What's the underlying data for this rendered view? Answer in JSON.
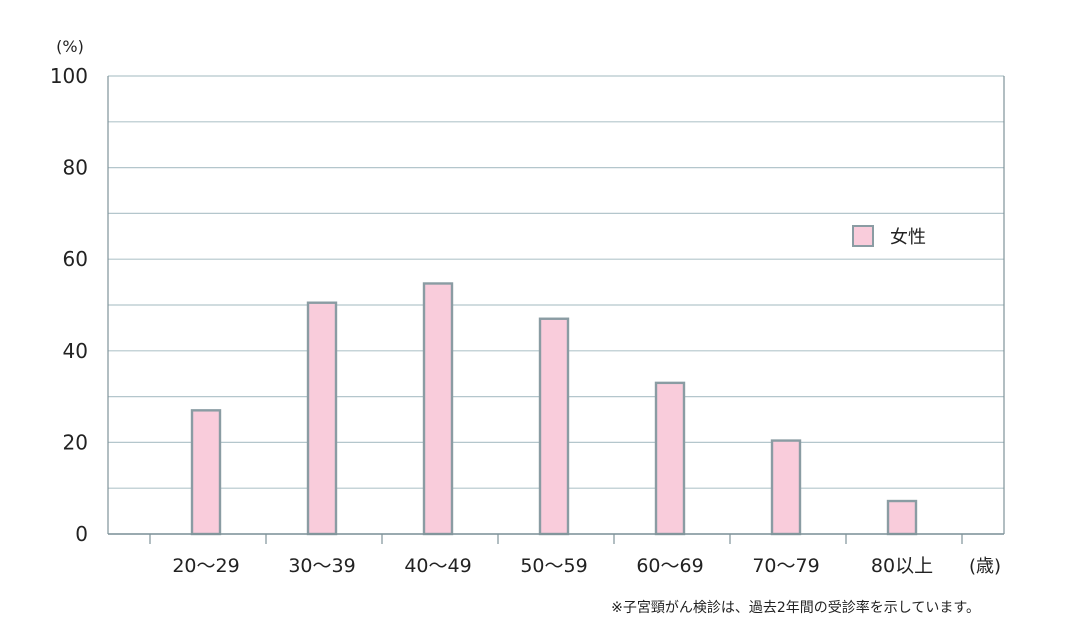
{
  "chart_data": {
    "type": "bar",
    "categories": [
      "20〜29",
      "30〜39",
      "40〜49",
      "50〜59",
      "60〜69",
      "70〜79",
      "80以上"
    ],
    "series": [
      {
        "name": "女性",
        "values": [
          27,
          50.5,
          54.7,
          47,
          33,
          20.4,
          7.2
        ]
      }
    ],
    "y_unit_label": "(%)",
    "x_unit_label": "(歳)",
    "ylim": [
      0,
      100
    ],
    "yticks": [
      0,
      20,
      40,
      60,
      80,
      100
    ],
    "grid": true,
    "legend_position": "right",
    "colors": {
      "bar_fill": "#f9ccdb",
      "bar_stroke": "#8a9ca3",
      "grid": "#b4c6cc",
      "axis": "#7f9399"
    },
    "footnote": "※子宮頸がん検診は、過去2年間の受診率を示しています。"
  }
}
